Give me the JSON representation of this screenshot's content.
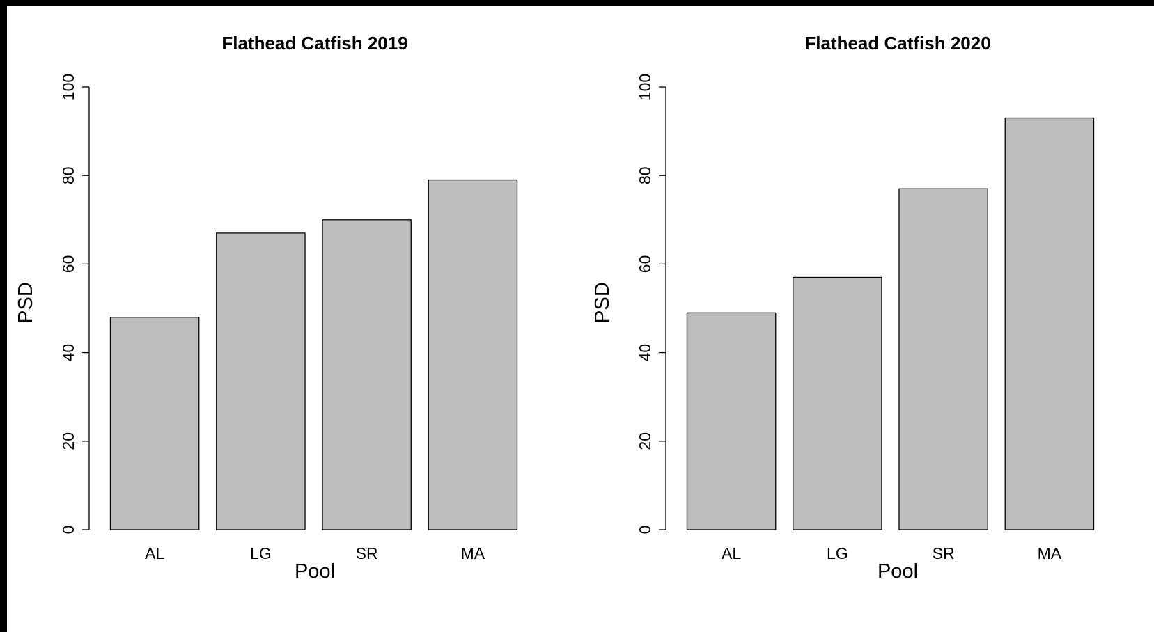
{
  "colors": {
    "bar_fill": "#bebebe",
    "bar_stroke": "#000000",
    "background": "#ffffff",
    "frame": "#000000"
  },
  "chart_data": [
    {
      "type": "bar",
      "title": "Flathead Catfish 2019",
      "xlabel": "Pool",
      "ylabel": "PSD",
      "categories": [
        "AL",
        "LG",
        "SR",
        "MA"
      ],
      "values": [
        48,
        67,
        70,
        79
      ],
      "ylim": [
        0,
        100
      ],
      "yticks": [
        0,
        20,
        40,
        60,
        80,
        100
      ],
      "grid": false,
      "legend": "none"
    },
    {
      "type": "bar",
      "title": "Flathead Catfish 2020",
      "xlabel": "Pool",
      "ylabel": "PSD",
      "categories": [
        "AL",
        "LG",
        "SR",
        "MA"
      ],
      "values": [
        49,
        57,
        77,
        93
      ],
      "ylim": [
        0,
        100
      ],
      "yticks": [
        0,
        20,
        40,
        60,
        80,
        100
      ],
      "grid": false,
      "legend": "none"
    }
  ]
}
